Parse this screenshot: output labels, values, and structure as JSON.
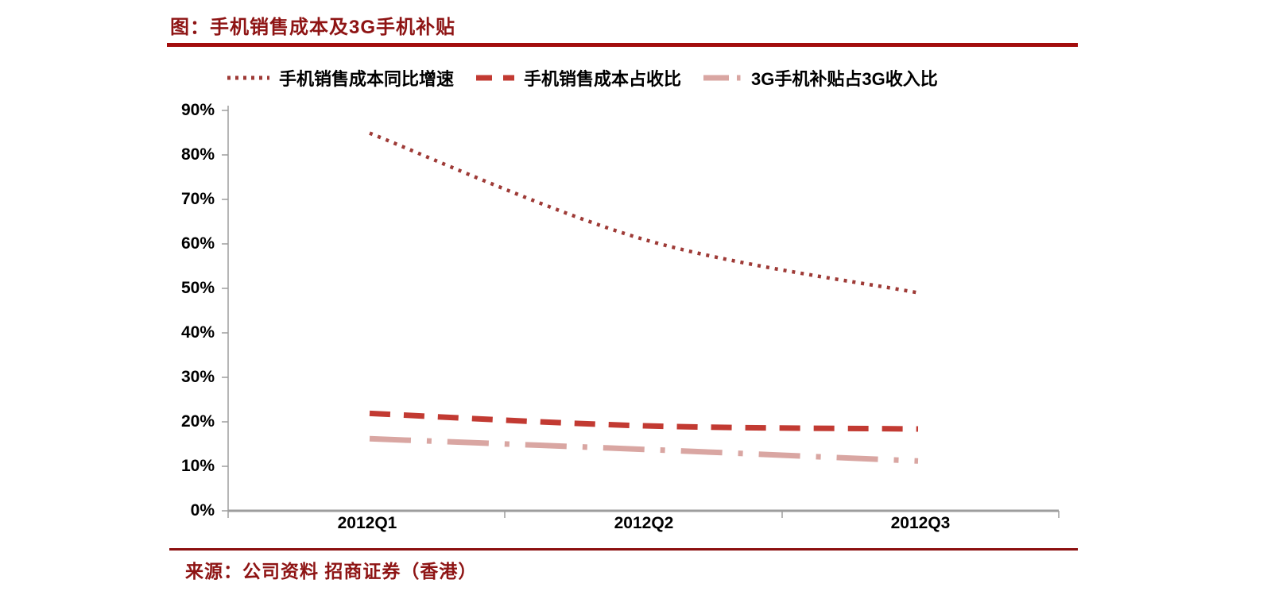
{
  "title": "图：手机销售成本及3G手机补贴",
  "source": "来源：公司资料 招商证券（香港）",
  "colors": {
    "title_text": "#8e1414",
    "source_text": "#8e1414",
    "rule_top": "#a30d0d",
    "rule_bottom": "#8b0f0f",
    "axis": "#9d9d9d",
    "tick_label": "#000000"
  },
  "chart_data": {
    "type": "line",
    "title": "图：手机销售成本及3G手机补贴",
    "categories": [
      "2012Q1",
      "2012Q2",
      "2012Q3"
    ],
    "series": [
      {
        "name": "手机销售成本同比增速",
        "color": "#9e3a36",
        "dash": "dotted",
        "values": [
          84.9,
          61.0,
          49.0
        ]
      },
      {
        "name": "手机销售成本占收比",
        "color": "#c23a32",
        "dash": "dashed",
        "values": [
          21.9,
          19.1,
          18.4
        ]
      },
      {
        "name": "3G手机补贴占3G收入比",
        "color": "#d9a6a2",
        "dash": "dashdot",
        "values": [
          16.2,
          13.8,
          11.2
        ]
      }
    ],
    "xlabel": "",
    "ylabel": "",
    "ylim": [
      0,
      90
    ],
    "ytick_step": 10,
    "y_ticks": [
      "90%",
      "80%",
      "70%",
      "60%",
      "50%",
      "40%",
      "30%",
      "20%",
      "10%",
      "0%"
    ],
    "grid": false,
    "legend_position": "top",
    "line_smoothing": true
  }
}
